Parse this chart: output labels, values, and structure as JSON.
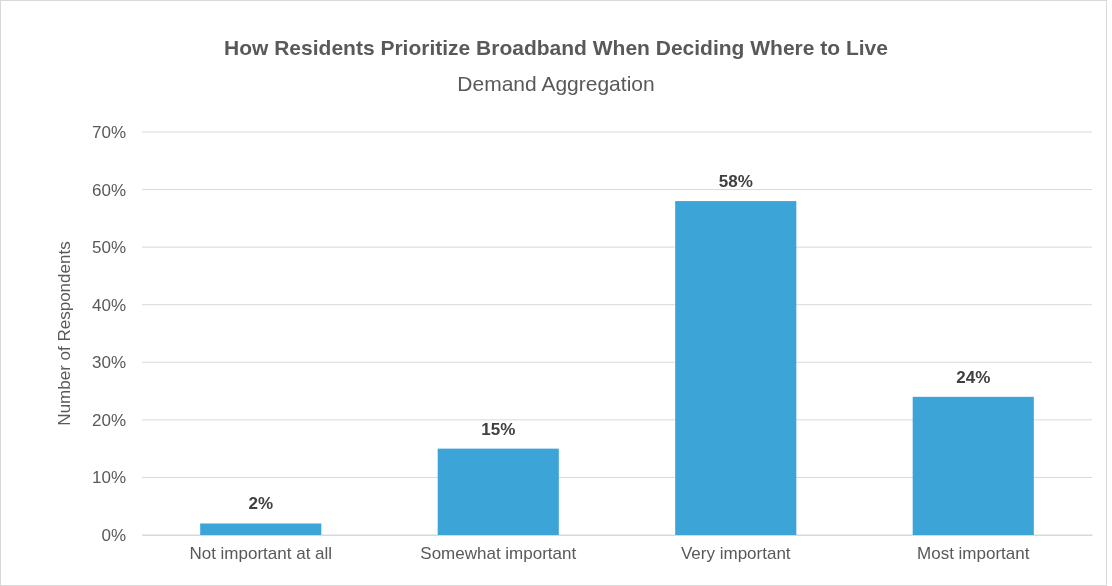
{
  "chart_data": {
    "type": "bar",
    "title": "How Residents Prioritize Broadband When Deciding Where to Live",
    "subtitle": "Demand Aggregation",
    "ylabel": "Number of Respondents",
    "categories": [
      "Not important at all",
      "Somewhat important",
      "Very important",
      "Most important"
    ],
    "values": [
      2,
      15,
      58,
      24
    ],
    "color": "#3ca4d7",
    "ylim": [
      0,
      70
    ],
    "yticks": [
      {
        "value": 0,
        "label": "0%"
      },
      {
        "value": 10,
        "label": "10%"
      },
      {
        "value": 20,
        "label": "20%"
      },
      {
        "value": 30,
        "label": "30%"
      },
      {
        "value": 40,
        "label": "40%"
      },
      {
        "value": 50,
        "label": "50%"
      },
      {
        "value": 60,
        "label": "60%"
      },
      {
        "value": 70,
        "label": "70%"
      }
    ],
    "value_labels": [
      "2%",
      "15%",
      "58%",
      "24%"
    ],
    "grid": "y"
  }
}
